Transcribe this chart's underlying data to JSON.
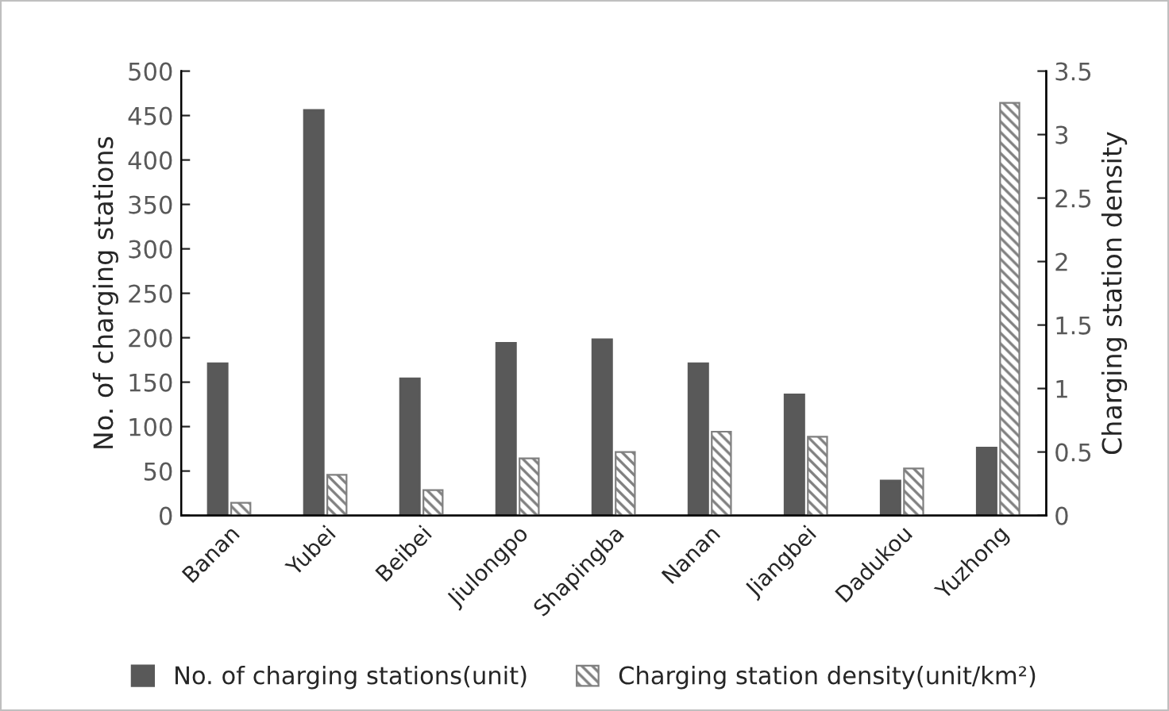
{
  "chart_data": {
    "type": "bar",
    "categories": [
      "Banan",
      "Yubei",
      "Beibei",
      "Jiulongpo",
      "Shapingba",
      "Nanan",
      "Jiangbei",
      "Dadukou",
      "Yuzhong"
    ],
    "series": [
      {
        "name": "No. of charging stations(unit)",
        "color": "#595959",
        "values": [
          171,
          456,
          154,
          194,
          198,
          171,
          136,
          39,
          76
        ]
      },
      {
        "name": "Charging station density(unit/km²)",
        "color": "#808080",
        "axis": "y2",
        "values": [
          0.1,
          0.32,
          0.2,
          0.45,
          0.5,
          0.66,
          0.62,
          0.37,
          3.25
        ]
      }
    ],
    "ylabel": "No. of charging stations",
    "y2label": "Charging station density",
    "ylim": [
      0,
      500
    ],
    "yticks": [
      0,
      50,
      100,
      150,
      200,
      250,
      300,
      350,
      400,
      450,
      500
    ],
    "y2lim": [
      0,
      3.5
    ],
    "y2ticks": [
      0,
      0.5,
      1,
      1.5,
      2,
      2.5,
      3,
      3.5
    ],
    "grid": false,
    "legend": "bottom"
  }
}
